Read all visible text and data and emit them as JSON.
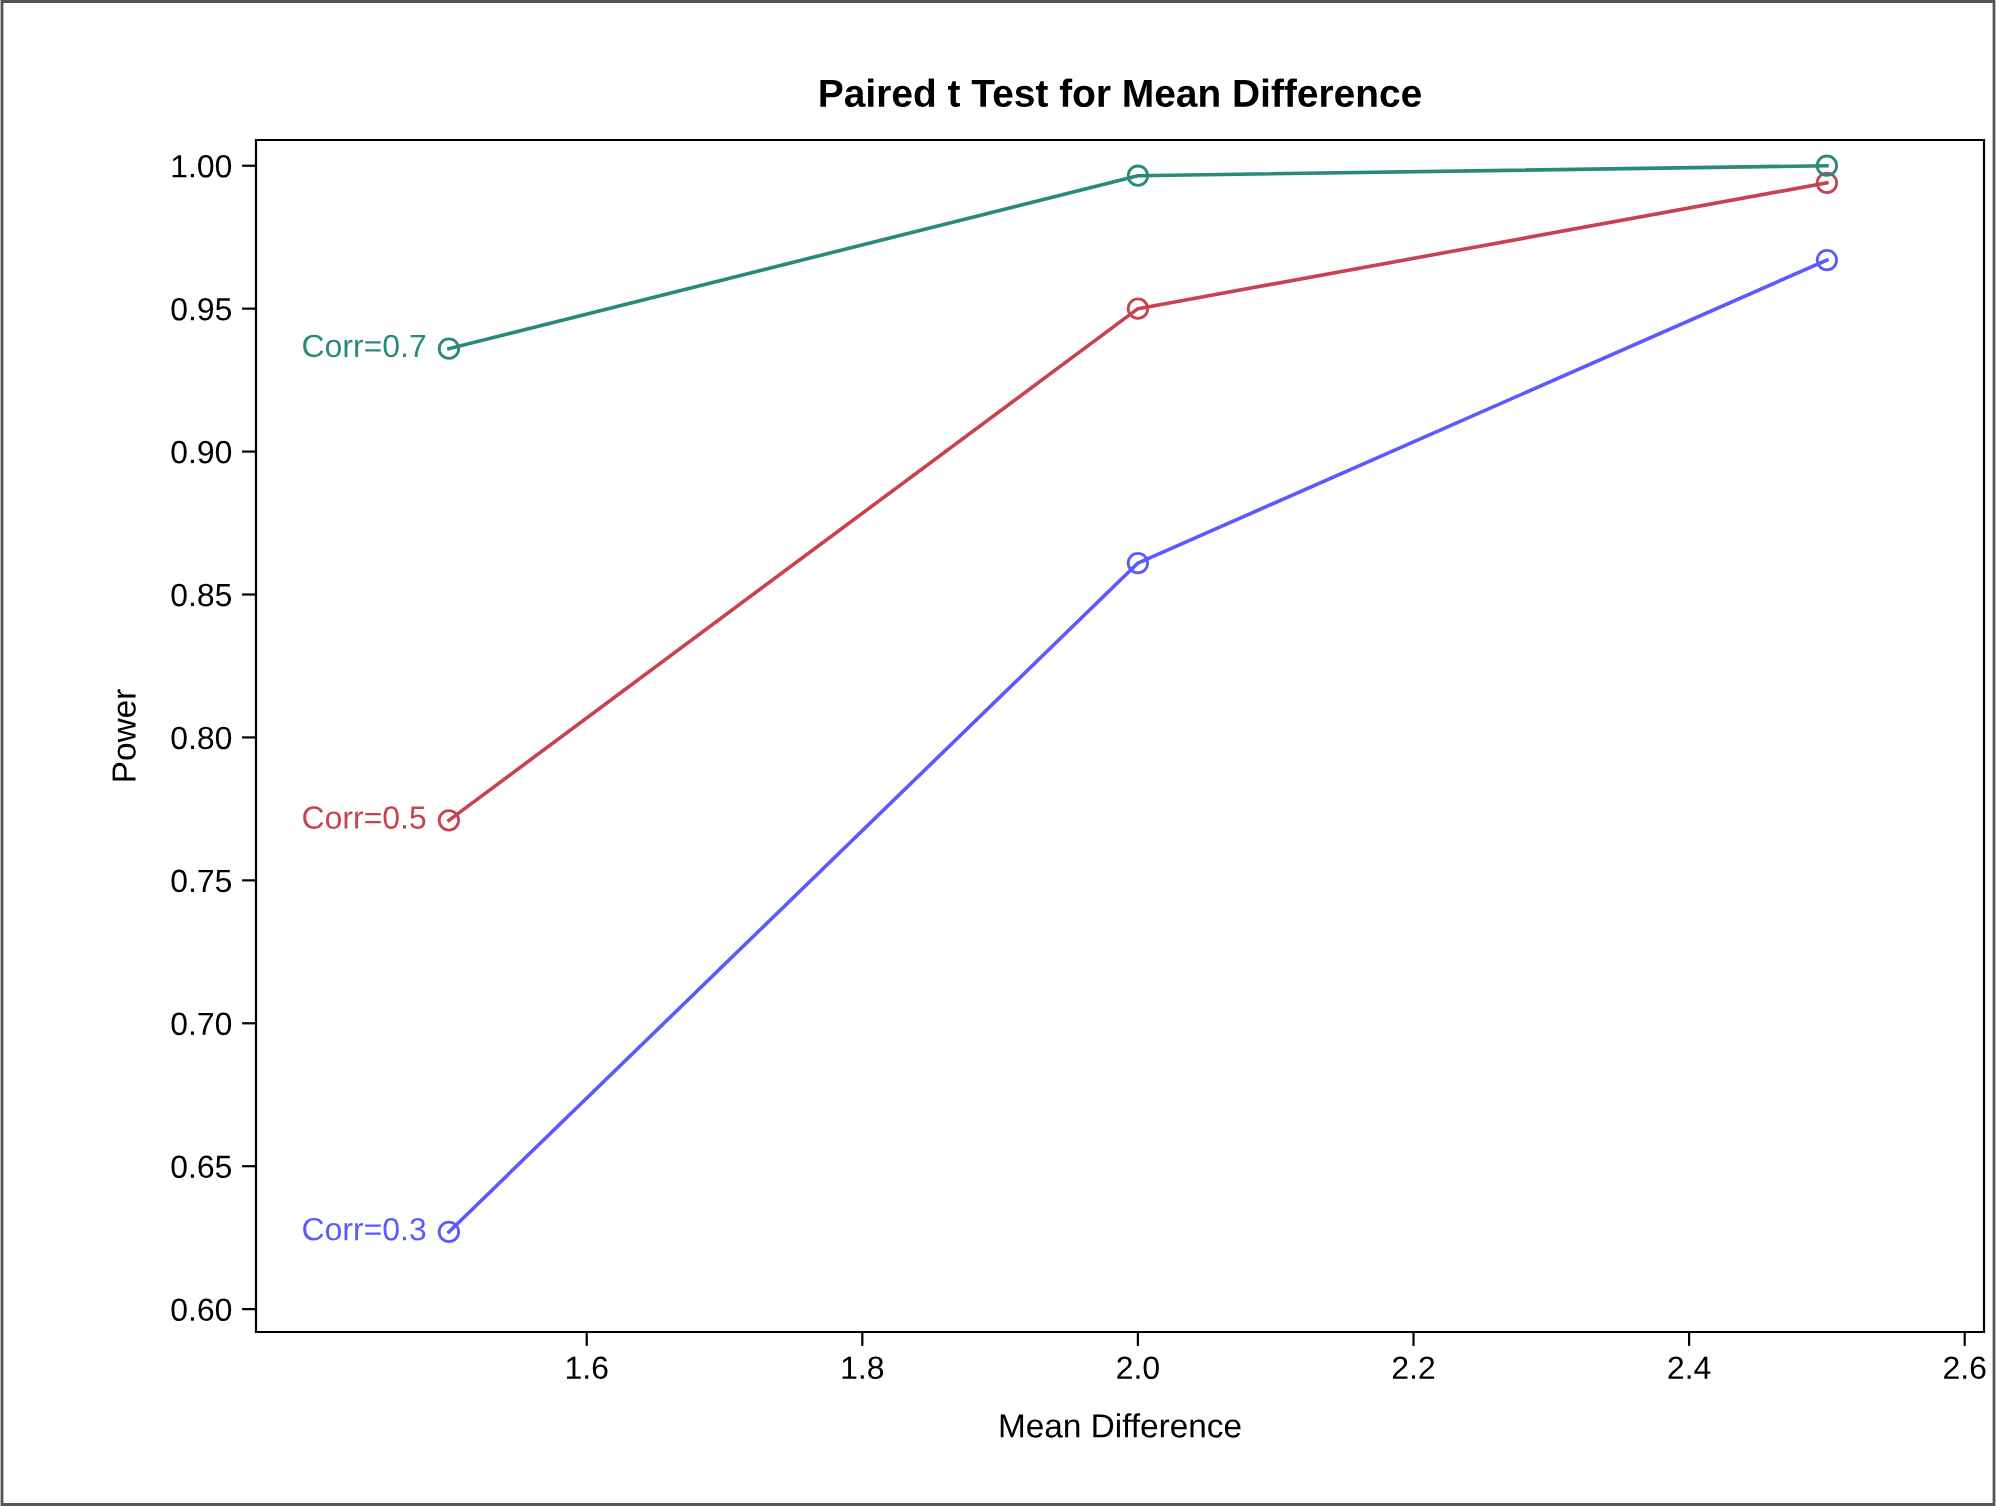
{
  "chart_data": {
    "type": "line",
    "title": "Paired t Test for Mean Difference",
    "xlabel": "Mean Difference",
    "ylabel": "Power",
    "x": [
      1.5,
      2.0,
      2.5
    ],
    "series": [
      {
        "name": "Corr=0.3",
        "color": "#5a5aff",
        "values": [
          0.627,
          0.861,
          0.967
        ]
      },
      {
        "name": "Corr=0.5",
        "color": "#c8424f",
        "values": [
          0.771,
          0.95,
          0.994
        ]
      },
      {
        "name": "Corr=0.7",
        "color": "#2a8a78",
        "values": [
          0.936,
          0.9965,
          1.0
        ]
      }
    ],
    "xlim": [
      1.36,
      2.614
    ],
    "xticks": [
      1.6,
      1.8,
      {
        "value": 2.0,
        "label": "2.0"
      },
      2.2,
      2.4,
      2.6
    ],
    "ylim": [
      0.592,
      1.009
    ],
    "yticks": [
      {
        "value": 0.6,
        "label": "0.60"
      },
      {
        "value": 0.65,
        "label": "0.65"
      },
      {
        "value": 0.7,
        "label": "0.70"
      },
      {
        "value": 0.75,
        "label": "0.75"
      },
      {
        "value": 0.8,
        "label": "0.80"
      },
      {
        "value": 0.85,
        "label": "0.85"
      },
      {
        "value": 0.9,
        "label": "0.90"
      },
      {
        "value": 0.95,
        "label": "0.95"
      },
      {
        "value": 1.0,
        "label": "1.00"
      }
    ],
    "marker": "circle",
    "line_style": "solid",
    "grid": false,
    "legend": false
  }
}
